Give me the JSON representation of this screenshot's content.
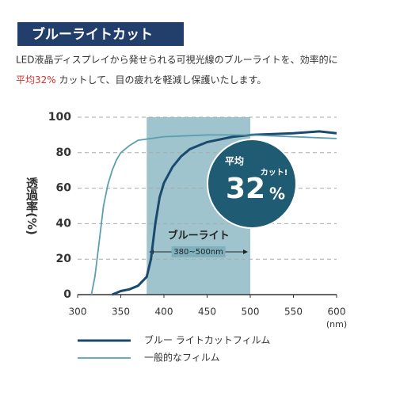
{
  "header": {
    "title": "ブルーライトカット"
  },
  "description": {
    "line1": "LED液晶ディスプレイから発せられる可視光線のブルーライトを、効率的に",
    "highlight": "平均32%",
    "line2": " カットして、目の疲れを軽減し保護いたします。"
  },
  "chart_data": {
    "type": "line",
    "ylabel": "透過率(%)",
    "xlabel": "(nm)",
    "xlim": [
      300,
      600
    ],
    "ylim": [
      0,
      100
    ],
    "xticks": [
      300,
      350,
      400,
      450,
      500,
      550,
      600
    ],
    "yticks": [
      0,
      20,
      40,
      60,
      80,
      100
    ],
    "grid": true,
    "band": {
      "range": [
        380,
        500
      ],
      "label": "ブルーライト",
      "sublabel": "380~500nm",
      "color": "#7fb0bd"
    },
    "badge": {
      "top": "平均",
      "value": "32",
      "unit": "%",
      "tag": "カット!",
      "color": "#1f5b72"
    },
    "series": [
      {
        "name": "ブルー ライトカットフィルム",
        "color": "#1a4a6e",
        "x": [
          340,
          345,
          350,
          360,
          370,
          380,
          385,
          390,
          395,
          400,
          410,
          420,
          430,
          450,
          480,
          500,
          550,
          580,
          600
        ],
        "values": [
          0,
          1,
          2,
          3,
          5,
          10,
          20,
          40,
          55,
          63,
          72,
          78,
          82,
          86,
          89,
          90,
          91,
          92,
          91
        ]
      },
      {
        "name": "一般的なフィルム",
        "color": "#5a9fb0",
        "x": [
          316,
          320,
          325,
          330,
          335,
          340,
          345,
          350,
          360,
          370,
          400,
          450,
          500,
          600
        ],
        "values": [
          0,
          10,
          30,
          50,
          62,
          70,
          76,
          80,
          84,
          87,
          89,
          90,
          90,
          88
        ]
      }
    ]
  }
}
